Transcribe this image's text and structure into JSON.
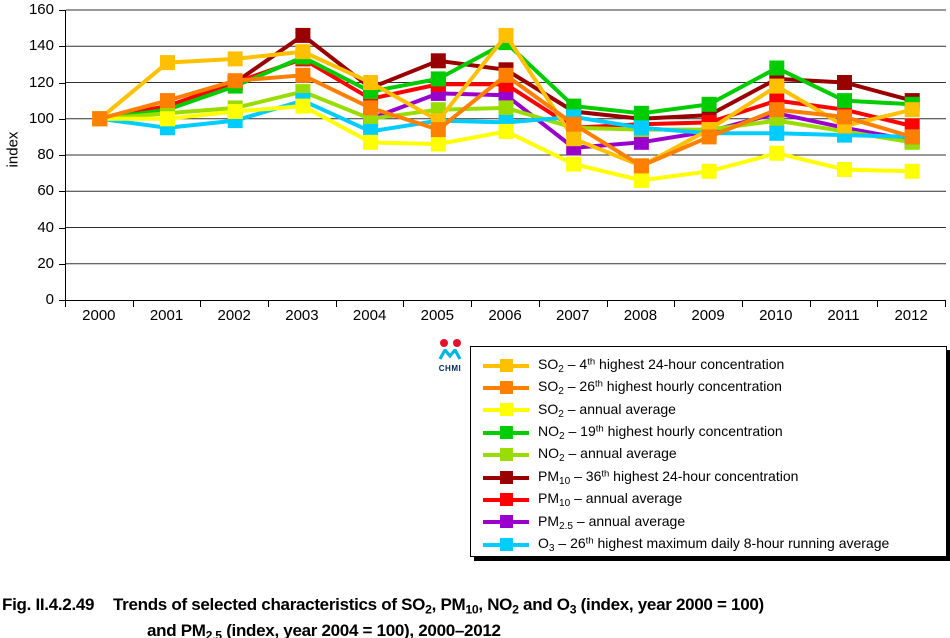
{
  "y_axis": {
    "title": "index"
  },
  "chart_data": {
    "type": "line",
    "title": "",
    "xlabel": "",
    "ylabel": "index",
    "x": [
      "2000",
      "2001",
      "2002",
      "2003",
      "2004",
      "2005",
      "2006",
      "2007",
      "2008",
      "2009",
      "2010",
      "2011",
      "2012"
    ],
    "ylim": [
      0,
      160
    ],
    "ytick_step": 20,
    "yticks": [
      0,
      20,
      40,
      60,
      80,
      100,
      120,
      140,
      160
    ],
    "grid": "horizontal",
    "legend_position": "bottom-right",
    "draw_order": [
      7,
      5,
      6,
      3,
      4,
      8,
      2,
      0,
      1
    ],
    "series": [
      {
        "id": "so2-4th-24h",
        "color": "#FFC000",
        "label_text": "SO2 – 4th highest 24-hour concentration",
        "label": [
          {
            "t": "SO"
          },
          {
            "sub": "2"
          },
          {
            "t": " – 4"
          },
          {
            "sup": "th"
          },
          {
            "t": " highest 24-hour concentration"
          }
        ],
        "values": [
          100,
          131,
          133,
          137,
          120,
          99,
          146,
          89,
          74,
          94,
          118,
          96,
          105
        ]
      },
      {
        "id": "so2-26th-hourly",
        "color": "#FF7F00",
        "label_text": "SO2 – 26th highest hourly concentration",
        "label": [
          {
            "t": "SO"
          },
          {
            "sub": "2"
          },
          {
            "t": " – 26"
          },
          {
            "sup": "th"
          },
          {
            "t": " highest hourly concentration"
          }
        ],
        "values": [
          100,
          110,
          121,
          124,
          106,
          94,
          124,
          97,
          74,
          90,
          105,
          101,
          90
        ]
      },
      {
        "id": "so2-annual",
        "color": "#FFFF00",
        "label_text": "SO2 – annual average",
        "label": [
          {
            "t": "SO"
          },
          {
            "sub": "2"
          },
          {
            "t": " – annual average"
          }
        ],
        "values": [
          100,
          100,
          104,
          107,
          87,
          86,
          93,
          75,
          66,
          71,
          81,
          72,
          71
        ]
      },
      {
        "id": "no2-19th-hourly",
        "color": "#00CC00",
        "label_text": "NO2 – 19th highest hourly concentration",
        "label": [
          {
            "t": "NO"
          },
          {
            "sub": "2"
          },
          {
            "t": " – 19"
          },
          {
            "sup": "th"
          },
          {
            "t": " highest hourly concentration"
          }
        ],
        "values": [
          100,
          105,
          118,
          134,
          115,
          122,
          142,
          107,
          103,
          108,
          128,
          110,
          108
        ]
      },
      {
        "id": "no2-annual",
        "color": "#99DD00",
        "label_text": "NO2 – annual average",
        "label": [
          {
            "t": "NO"
          },
          {
            "sub": "2"
          },
          {
            "t": " – annual average"
          }
        ],
        "values": [
          100,
          103,
          106,
          115,
          100,
          105,
          106,
          95,
          94,
          94,
          99,
          93,
          87
        ]
      },
      {
        "id": "pm10-36th-24h",
        "color": "#990000",
        "label_text": "PM10 – 36th highest 24-hour concentration",
        "label": [
          {
            "t": "PM"
          },
          {
            "sub": "10"
          },
          {
            "t": " – 36"
          },
          {
            "sup": "th"
          },
          {
            "t": " highest 24-hour concentration"
          }
        ],
        "values": [
          100,
          107,
          120,
          146,
          117,
          132,
          127,
          104,
          100,
          102,
          122,
          120,
          110
        ]
      },
      {
        "id": "pm10-annual",
        "color": "#FF0000",
        "label_text": "PM10 – annual average",
        "label": [
          {
            "t": "PM"
          },
          {
            "sub": "10"
          },
          {
            "t": " – annual average"
          }
        ],
        "values": [
          100,
          107,
          120,
          133,
          111,
          119,
          119,
          95,
          97,
          98,
          110,
          105,
          96
        ]
      },
      {
        "id": "pm25-annual",
        "color": "#9900CC",
        "label_text": "PM2.5 – annual average",
        "label": [
          {
            "t": "PM"
          },
          {
            "sub": "2.5"
          },
          {
            "t": " – annual average"
          }
        ],
        "values": [
          null,
          null,
          null,
          null,
          100,
          114,
          113,
          84,
          87,
          93,
          103,
          95,
          88
        ]
      },
      {
        "id": "o3-26th-8h",
        "color": "#00CCFF",
        "label_text": "O3 – 26th highest maximum daily 8-hour running average",
        "label": [
          {
            "t": "O"
          },
          {
            "sub": "3"
          },
          {
            "t": " – 26"
          },
          {
            "sup": "th"
          },
          {
            "t": " highest maximum daily 8-hour running average"
          }
        ],
        "values": [
          100,
          95,
          99,
          110,
          93,
          99,
          98,
          101,
          95,
          92,
          92,
          91,
          90
        ]
      }
    ]
  },
  "logo": {
    "text": "CHMI",
    "dot_color": "#E8112D",
    "wave_color": "#00B5E2",
    "text_color": "#002B5C"
  },
  "caption": {
    "fig_label": "Fig. II.4.2.49",
    "line1": [
      {
        "t": "Trends of selected characteristics of SO"
      },
      {
        "sub": "2"
      },
      {
        "t": ", PM"
      },
      {
        "sub": "10"
      },
      {
        "t": ", NO"
      },
      {
        "sub": "2"
      },
      {
        "t": " and O"
      },
      {
        "sub": "3"
      },
      {
        "t": " (index, year 2000 = 100)"
      }
    ],
    "line2": [
      {
        "t": "and PM"
      },
      {
        "sub": "2.5"
      },
      {
        "t": " (index, year 2004 = 100), 2000–2012"
      }
    ]
  }
}
